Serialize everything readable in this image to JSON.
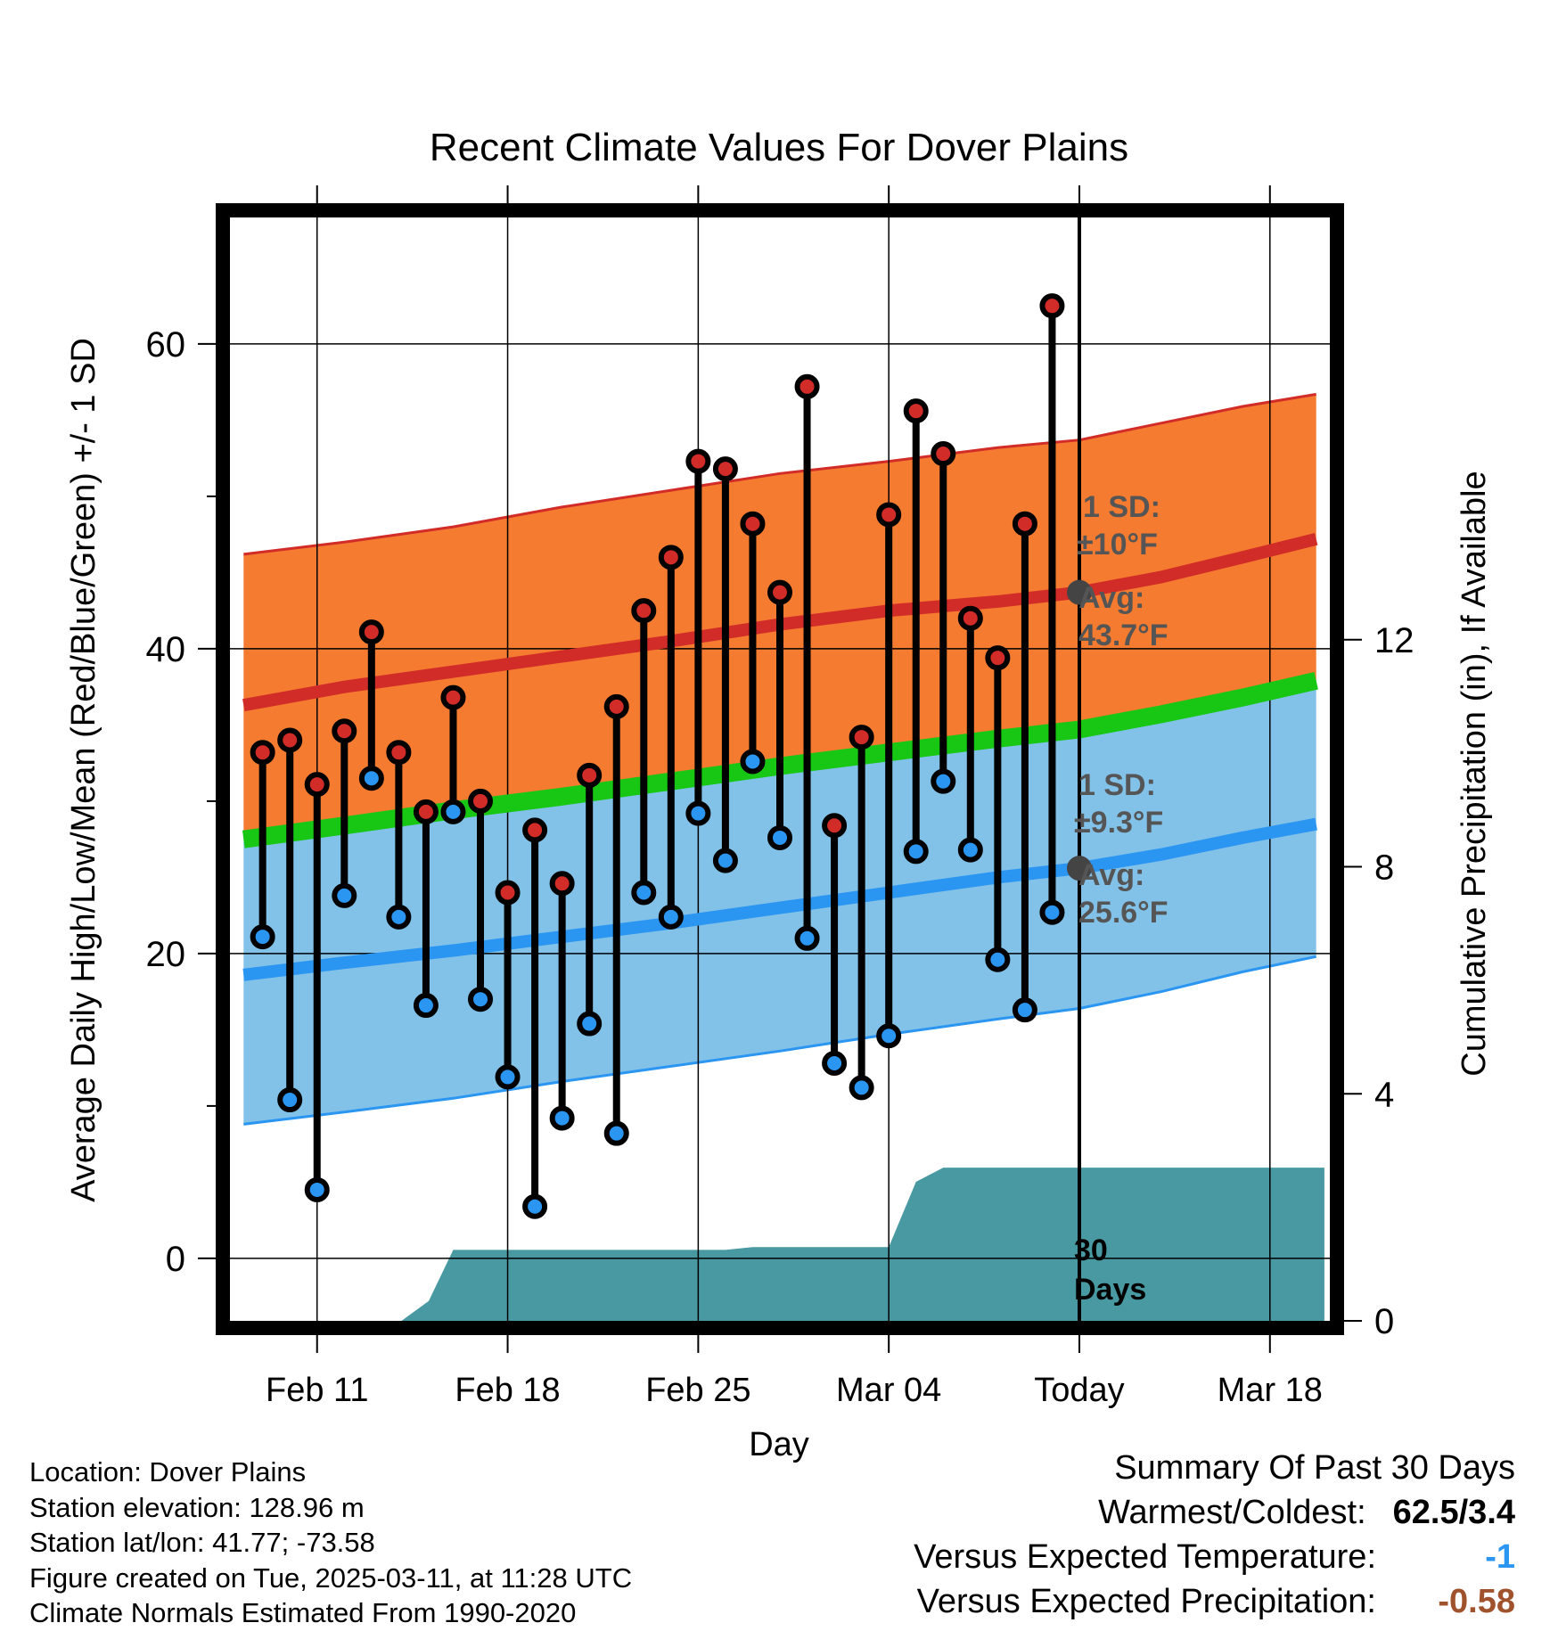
{
  "colors": {
    "high_band": "#f47b30",
    "low_band": "#82c1e8",
    "mean_band": "#17c714",
    "high_avg_line": "#d22c28",
    "low_avg_line": "#2a96f2",
    "precip_fill": "#4899a2",
    "high_marker": "#d22c28",
    "low_marker": "#2a96f2",
    "annotation_text": "#555555",
    "anomaly_temp": "#2a96f2",
    "anomaly_precip": "#a0522d"
  },
  "chart_data": {
    "type": "line",
    "title": "Recent Climate Values For Dover Plains",
    "xlabel": "Day",
    "ylabel": "Average Daily High/Low/Mean (Red/Blue/Green) +/- 1 SD",
    "ylabel_right": "Cumulative Precipitation (in), If Available",
    "xlim": [
      -3.2,
      37.2
    ],
    "ylim": [
      -4.1,
      68.3
    ],
    "ylim_right": [
      0,
      19.44
    ],
    "x_ticks": [
      {
        "x": 0,
        "label": "Feb 11"
      },
      {
        "x": 7,
        "label": "Feb 18"
      },
      {
        "x": 14,
        "label": "Feb 25"
      },
      {
        "x": 21,
        "label": "Mar 04"
      },
      {
        "x": 28,
        "label": "Today"
      },
      {
        "x": 35,
        "label": "Mar 18"
      }
    ],
    "y_ticks": [
      0,
      20,
      40,
      60
    ],
    "y_minor_ticks": [
      10,
      30,
      50
    ],
    "y_right_ticks": [
      0,
      4,
      8,
      12
    ],
    "today_x": 28,
    "days_label": "30 Days",
    "daily": [
      {
        "x": -2,
        "high": 33.2,
        "low": 21.1
      },
      {
        "x": -1,
        "high": 34.0,
        "low": 10.4
      },
      {
        "x": 0,
        "high": 31.1,
        "low": 4.5
      },
      {
        "x": 1,
        "high": 34.6,
        "low": 23.8
      },
      {
        "x": 2,
        "high": 41.1,
        "low": 31.5
      },
      {
        "x": 3,
        "high": 33.2,
        "low": 22.4
      },
      {
        "x": 4,
        "high": 29.3,
        "low": 16.6
      },
      {
        "x": 5,
        "high": 36.8,
        "low": 29.3
      },
      {
        "x": 6,
        "high": 30.0,
        "low": 17.0
      },
      {
        "x": 7,
        "high": 24.0,
        "low": 11.9
      },
      {
        "x": 8,
        "high": 28.1,
        "low": 3.4
      },
      {
        "x": 9,
        "high": 24.6,
        "low": 9.2
      },
      {
        "x": 10,
        "high": 31.7,
        "low": 15.4
      },
      {
        "x": 11,
        "high": 36.2,
        "low": 8.2
      },
      {
        "x": 12,
        "high": 42.5,
        "low": 24.0
      },
      {
        "x": 13,
        "high": 46.0,
        "low": 22.4
      },
      {
        "x": 14,
        "high": 52.3,
        "low": 29.2
      },
      {
        "x": 15,
        "high": 51.8,
        "low": 26.1
      },
      {
        "x": 16,
        "high": 48.2,
        "low": 32.6
      },
      {
        "x": 17,
        "high": 43.7,
        "low": 27.6
      },
      {
        "x": 18,
        "high": 57.2,
        "low": 21.0
      },
      {
        "x": 19,
        "high": 28.4,
        "low": 12.8
      },
      {
        "x": 20,
        "high": 34.2,
        "low": 11.2
      },
      {
        "x": 21,
        "high": 48.8,
        "low": 14.6
      },
      {
        "x": 22,
        "high": 55.6,
        "low": 26.7
      },
      {
        "x": 23,
        "high": 52.8,
        "low": 31.3
      },
      {
        "x": 24,
        "high": 42.0,
        "low": 26.8
      },
      {
        "x": 25,
        "high": 39.4,
        "low": 19.6
      },
      {
        "x": 26,
        "high": 48.2,
        "low": 16.3
      },
      {
        "x": 27,
        "high": 62.5,
        "low": 22.7
      }
    ],
    "normals": {
      "x": [
        -2.7,
        1,
        5,
        9,
        13,
        17,
        21,
        25,
        28,
        31,
        34,
        36.7
      ],
      "high_avg": [
        36.3,
        37.5,
        38.5,
        39.5,
        40.5,
        41.6,
        42.5,
        43.1,
        43.7,
        44.7,
        46.0,
        47.2
      ],
      "low_avg": [
        18.6,
        19.4,
        20.2,
        21.1,
        22.0,
        23.0,
        24.0,
        25.0,
        25.6,
        26.5,
        27.6,
        28.5
      ],
      "mean_avg": [
        27.5,
        28.4,
        29.4,
        30.3,
        31.3,
        32.3,
        33.2,
        34.1,
        34.7,
        35.7,
        36.8,
        37.9
      ],
      "high_upper": [
        46.2,
        47.0,
        48.0,
        49.3,
        50.4,
        51.5,
        52.3,
        53.2,
        53.7,
        54.8,
        55.9,
        56.7
      ],
      "low_lower": [
        8.8,
        9.6,
        10.5,
        11.6,
        12.6,
        13.6,
        14.7,
        15.7,
        16.4,
        17.5,
        18.8,
        19.8
      ]
    },
    "precip": {
      "x": [
        -3.0,
        3.1,
        4.1,
        5.0,
        12.0,
        15.0,
        16.0,
        20.0,
        21.0,
        22.0,
        23.0,
        27.0,
        28.0,
        37.0
      ],
      "value": [
        0,
        0,
        0.35,
        1.25,
        1.25,
        1.25,
        1.3,
        1.3,
        1.3,
        2.45,
        2.7,
        2.7,
        2.7,
        2.7
      ]
    },
    "annotations": {
      "high_sd_label": "1 SD:",
      "high_sd_value": "±10°F",
      "high_avg_label": "Avg:",
      "high_avg_value": "43.7°F",
      "low_sd_label": "1 SD:",
      "low_sd_value": "±9.3°F",
      "low_avg_label": "Avg:",
      "low_avg_value": "25.6°F"
    }
  },
  "info": {
    "location": "Location: Dover Plains",
    "elevation": "Station elevation: 128.96 m",
    "latlon": "Station lat/lon: 41.77; -73.58",
    "created": "Figure created on Tue, 2025-03-11, at 11:28 UTC",
    "normals": "Climate Normals Estimated From 1990-2020"
  },
  "summary": {
    "title": "Summary Of Past 30 Days",
    "warmest_coldest_label": "Warmest/Coldest:",
    "warmest_coldest_value": "62.5/3.4",
    "temp_label": "Versus Expected Temperature:",
    "temp_value": "-1",
    "precip_label": "Versus Expected Precipitation:",
    "precip_value": "-0.58"
  }
}
